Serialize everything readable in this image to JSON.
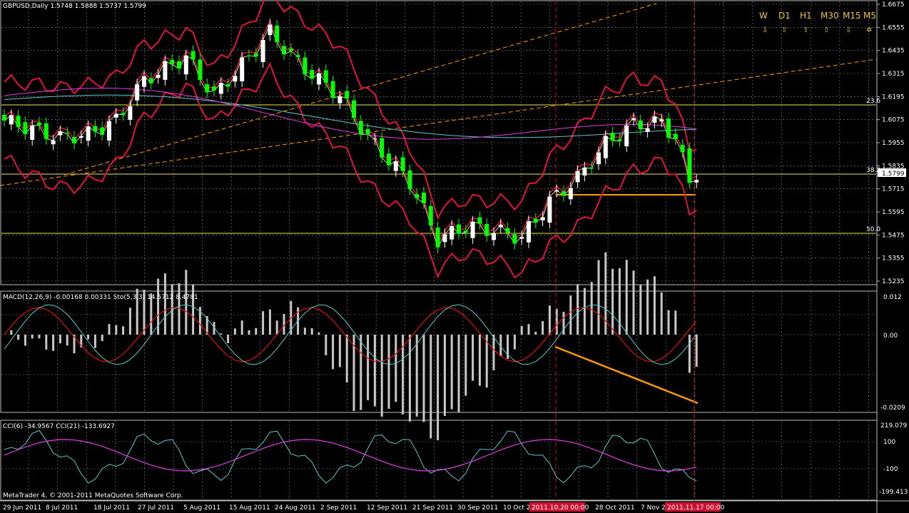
{
  "title": {
    "symbol": "GBPUSD,Daily",
    "ohlc": "1.5748 1.5888 1.5737 1.5799"
  },
  "timeframes": [
    {
      "label": "W",
      "arrow": "⇩",
      "arrow_color": "#6c7cff"
    },
    {
      "label": "D1",
      "arrow": "⇧",
      "arrow_color": "#e8c440"
    },
    {
      "label": "H1",
      "arrow": "⇧",
      "arrow_color": "#e8c440"
    },
    {
      "label": "M30",
      "arrow": "⇧",
      "arrow_color": "#e8c440"
    },
    {
      "label": "M15",
      "arrow": "⇩",
      "arrow_color": "#6c7cff"
    },
    {
      "label": "M5",
      "arrow": "✲",
      "arrow_color": "#ffffff"
    }
  ],
  "price_scale": [
    "1.6675",
    "1.6555",
    "1.6435",
    "1.6315",
    "1.6195",
    "1.6075",
    "1.5955",
    "1.5835",
    "1.5715",
    "1.5595",
    "1.5475",
    "1.5355",
    "1.5235"
  ],
  "current_price": "1.5799",
  "fib_levels": [
    {
      "label": "23.6"
    },
    {
      "label": "38.2"
    },
    {
      "label": "50.0"
    }
  ],
  "macd_panel": {
    "title": "MACD(12,26,9) -0.00168 0.00331  Sto(5,3,3) 14.5712 8.4781",
    "scale": [
      "0.012",
      "0.00",
      "-0.0209"
    ]
  },
  "cci_panel": {
    "title": "CCI(6) -34.9567  CCI(21) -133.6927",
    "scale": [
      "219.079",
      "100",
      "-100",
      "-199.413"
    ]
  },
  "copyright": "MetaTrader 4, © 2001-2011 MetaQuotes Software Corp.",
  "dates": [
    "29 Jun 2011",
    "8 Jul 2011",
    "18 Jul 2011",
    "27 Jul 2011",
    "5 Aug 2011",
    "15 Aug 2011",
    "24 Aug 2011",
    "2 Sep 2011",
    "12 Sep 2011",
    "21 Sep 2011",
    "30 Sep 2011",
    "10 Oct 2011",
    "28 Oct 2011",
    "7 Nov 2011"
  ],
  "vline_dates": [
    "2011.10.20 00:00",
    "2011.11.17 00:00"
  ],
  "colors": {
    "bull": "#ffffff",
    "bear": "#00ff00",
    "band": "#e0143c",
    "grid": "#8a8a8a",
    "fib": "#e8e860",
    "trend": "#ff9900",
    "cci6": "#5ec8c8",
    "cci21": "#e23fe2"
  }
}
